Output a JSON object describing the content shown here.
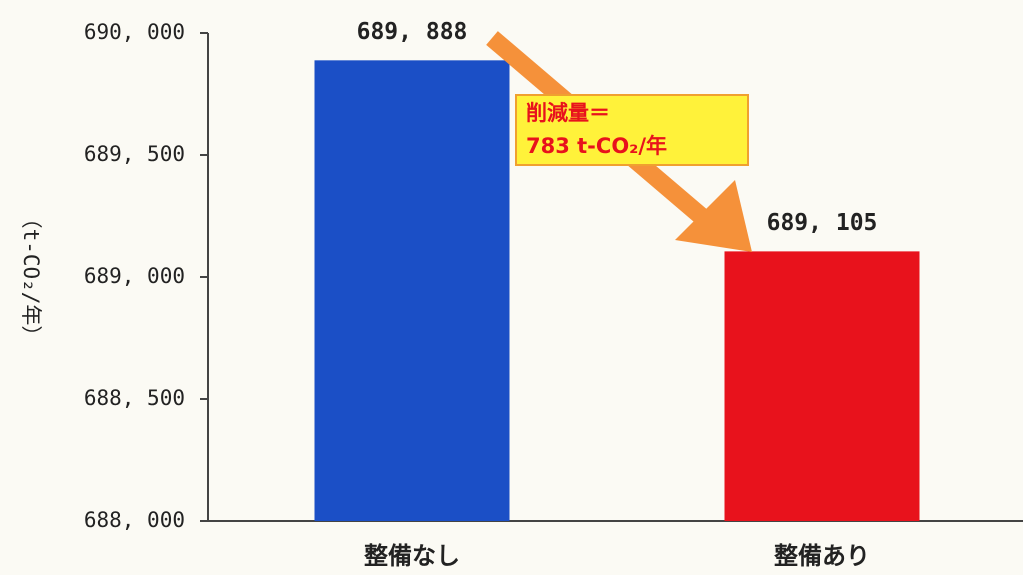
{
  "chart_data": {
    "type": "bar",
    "ylabel": "（t-CO₂/年）",
    "categories": [
      "整備なし",
      "整備あり"
    ],
    "values": [
      689888,
      689105
    ],
    "value_labels": [
      "689, 888",
      "689, 105"
    ],
    "colors": [
      "#1b4fc6",
      "#e8121c"
    ],
    "ylim": [
      688000,
      690000
    ],
    "yticks": [
      {
        "value": 688000,
        "label": "688, 000"
      },
      {
        "value": 688500,
        "label": "688, 500"
      },
      {
        "value": 689000,
        "label": "689, 000"
      },
      {
        "value": 689500,
        "label": "689, 500"
      },
      {
        "value": 690000,
        "label": "690, 000"
      }
    ],
    "annotations": [
      "削減量＝",
      "783 t-CO₂/年"
    ]
  }
}
